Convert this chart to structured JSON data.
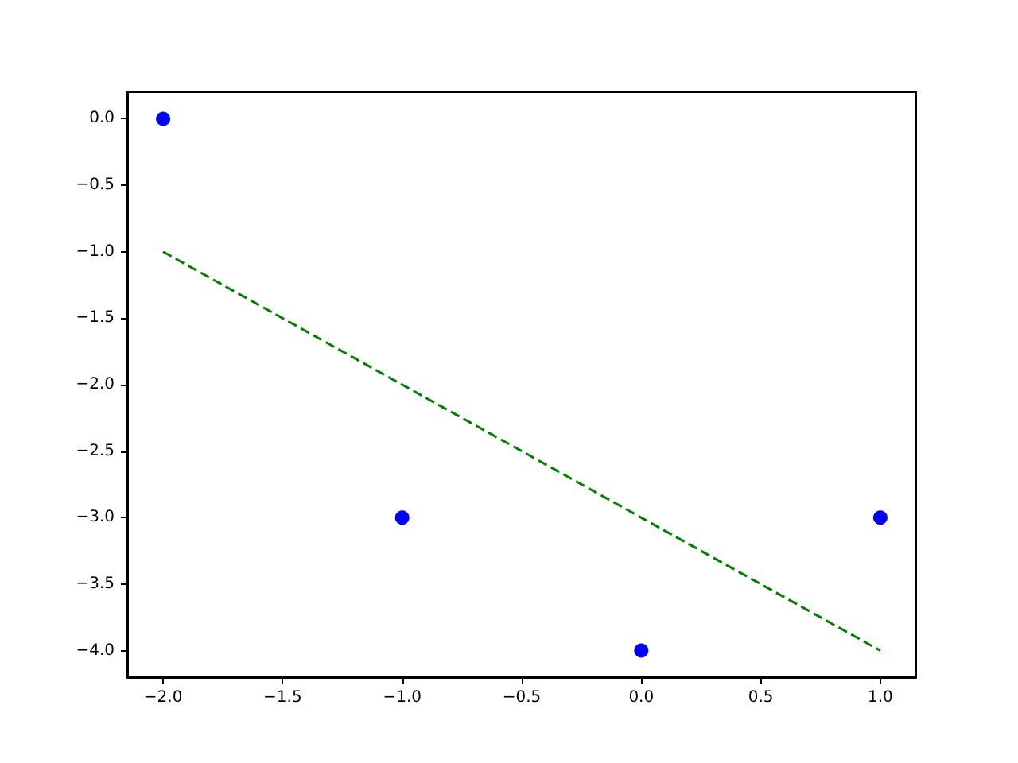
{
  "chart_data": {
    "type": "scatter",
    "xlim": [
      -2.15,
      1.15
    ],
    "xticks": [
      {
        "value": -2,
        "label": "−2.0"
      },
      {
        "value": -1.5,
        "label": "−1.5"
      },
      {
        "value": -1,
        "label": "−1.0"
      },
      {
        "value": -0.5,
        "label": "−0.5"
      },
      {
        "value": 0,
        "label": "0.0"
      },
      {
        "value": 0.5,
        "label": "0.5"
      },
      {
        "value": 1,
        "label": "1.0"
      }
    ],
    "ylim": [
      -4.2,
      0.2
    ],
    "yticks": [
      {
        "value": 0,
        "label": "0.0"
      },
      {
        "value": -0.5,
        "label": "−0.5"
      },
      {
        "value": -1,
        "label": "−1.0"
      },
      {
        "value": -1.5,
        "label": "−1.5"
      },
      {
        "value": -2,
        "label": "−2.0"
      },
      {
        "value": -2.5,
        "label": "−2.5"
      },
      {
        "value": -3,
        "label": "−3.0"
      },
      {
        "value": -3.5,
        "label": "−3.5"
      },
      {
        "value": -4,
        "label": "−4.0"
      }
    ],
    "grid": false,
    "series": [
      {
        "color": "#0000ff",
        "marker": "circle",
        "x": [
          -2,
          -1,
          0,
          1
        ],
        "values": [
          0,
          -3,
          -4,
          -3
        ]
      },
      {
        "type": "line",
        "color": "#008000",
        "marker": "none",
        "line_style": "dashed",
        "x": [
          -2,
          1
        ],
        "values": [
          -1,
          -4
        ]
      }
    ]
  }
}
